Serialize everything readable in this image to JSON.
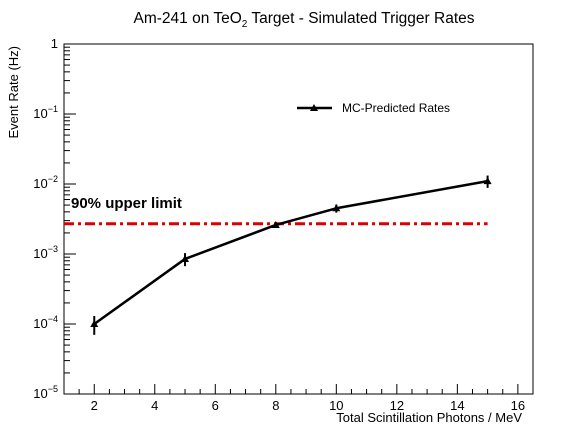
{
  "chart_data": {
    "type": "line",
    "title": {
      "prefix": "Am-241 on TeO",
      "subscript": "2",
      "suffix": " Target - Simulated Trigger Rates"
    },
    "xlabel": "Total Scintillation Photons / MeV",
    "ylabel": "Event Rate (Hz)",
    "xlim": [
      1,
      16.5
    ],
    "ylim": [
      1e-05,
      1
    ],
    "yscale": "log",
    "grid": false,
    "x_ticks": [
      2,
      4,
      6,
      8,
      10,
      12,
      14,
      16
    ],
    "x_tick_labels": [
      "2",
      "4",
      "6",
      "8",
      "10",
      "12",
      "14",
      "16"
    ],
    "y_ticks": [
      {
        "value": 1e-05,
        "base": "10",
        "exp": "−5"
      },
      {
        "value": 0.0001,
        "base": "10",
        "exp": "−4"
      },
      {
        "value": 0.001,
        "base": "10",
        "exp": "−3"
      },
      {
        "value": 0.01,
        "base": "10",
        "exp": "−2"
      },
      {
        "value": 0.1,
        "base": "10",
        "exp": "−1"
      },
      {
        "value": 1,
        "base": "1",
        "exp": ""
      }
    ],
    "legend": {
      "placement": "top-right",
      "entries": [
        "MC-Predicted Rates"
      ]
    },
    "series": [
      {
        "name": "MC-Predicted Rates",
        "color": "#000000",
        "marker": "triangle",
        "x": [
          2,
          5,
          8,
          10,
          15
        ],
        "y": [
          0.0001,
          0.00085,
          0.0026,
          0.0045,
          0.011
        ],
        "y_err_low": [
          3e-05,
          0.00018,
          0.0002,
          0.0006,
          0.0022
        ],
        "y_err_high": [
          3e-05,
          0.00018,
          0.0002,
          0.0006,
          0.0022
        ]
      }
    ],
    "reference_line": {
      "label": "90% upper limit",
      "y": 0.0027,
      "x_range": [
        1,
        15
      ],
      "color": "#dd0000",
      "style": "dash-dot"
    }
  }
}
